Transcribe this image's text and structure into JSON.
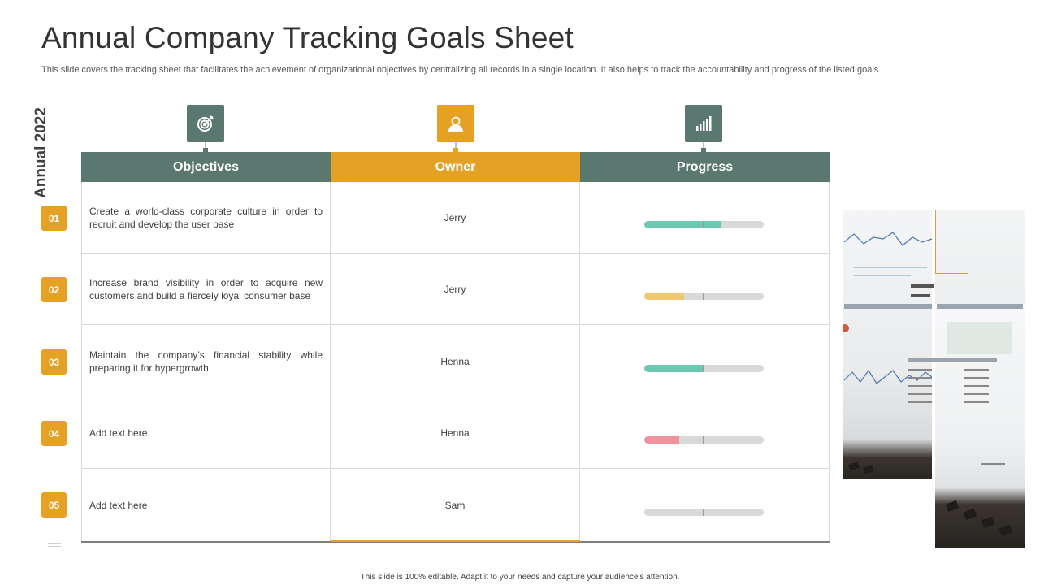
{
  "title": "Annual Company Tracking Goals Sheet",
  "subtitle": "This slide covers the tracking sheet that facilitates the achievement of organizational objectives by centralizing all records in a single location. It also helps to track the accountability and progress of the listed goals.",
  "year_label": "Annual 2022",
  "headers": {
    "objectives": "Objectives",
    "owner": "Owner",
    "progress": "Progress"
  },
  "header_icons": [
    "target-icon",
    "person-icon",
    "bar-chart-icon"
  ],
  "rows": [
    {
      "num": "01",
      "objective": "Create a world-class corporate culture in order to recruit and develop the user base",
      "owner": "Jerry",
      "progress": 0.64,
      "color": "#6cc8b0"
    },
    {
      "num": "02",
      "objective": "Increase brand visibility in order to acquire new customers and build a fiercely loyal consumer base",
      "owner": "Jerry",
      "progress": 0.33,
      "color": "#f0c670"
    },
    {
      "num": "03",
      "objective": "Maintain the company’s financial stability while preparing  it for hypergrowth.",
      "owner": "Henna",
      "progress": 0.49,
      "color": "#6cc8b0"
    },
    {
      "num": "04",
      "objective": "Add text here",
      "owner": "Henna",
      "progress": 0.29,
      "color": "#f0929a"
    },
    {
      "num": "05",
      "objective": "Add text here",
      "owner": "Sam",
      "progress": 0.0,
      "color": "#6cc8b0"
    }
  ],
  "colors": {
    "teal": "#5b7870",
    "amber": "#e5a124"
  },
  "footer": "This slide is 100% editable. Adapt it to your needs and capture your audience’s attention."
}
